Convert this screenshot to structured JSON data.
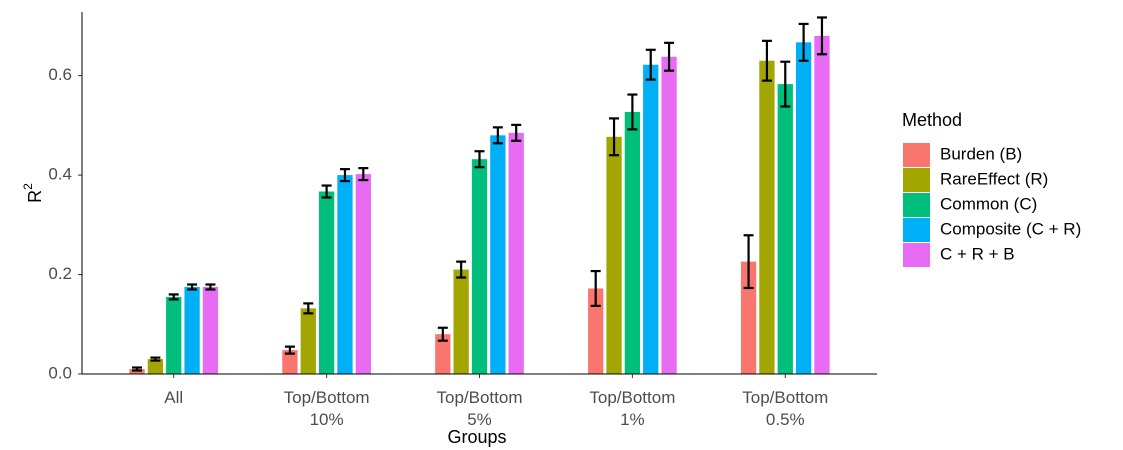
{
  "chart_data": {
    "type": "bar",
    "x_label": "Groups",
    "y_label": "R",
    "y_label_superscript": "2",
    "categories": [
      [
        "All"
      ],
      [
        "Top/Bottom",
        "10%"
      ],
      [
        "Top/Bottom",
        "5%"
      ],
      [
        "Top/Bottom",
        "1%"
      ],
      [
        "Top/Bottom",
        "0.5%"
      ]
    ],
    "series": [
      {
        "name": "Burden (B)",
        "color": "#F8766D",
        "values": [
          0.01,
          0.048,
          0.08,
          0.172,
          0.226
        ],
        "errors": [
          0.003,
          0.007,
          0.013,
          0.035,
          0.053
        ]
      },
      {
        "name": "RareEffect (R)",
        "color": "#A3A500",
        "values": [
          0.03,
          0.132,
          0.21,
          0.477,
          0.63
        ],
        "errors": [
          0.003,
          0.01,
          0.016,
          0.037,
          0.04
        ]
      },
      {
        "name": "Common (C)",
        "color": "#00BF7D",
        "values": [
          0.155,
          0.367,
          0.432,
          0.527,
          0.583
        ],
        "errors": [
          0.005,
          0.012,
          0.016,
          0.035,
          0.045
        ]
      },
      {
        "name": "Composite (C + R)",
        "color": "#00B0F6",
        "values": [
          0.175,
          0.4,
          0.48,
          0.622,
          0.667
        ],
        "errors": [
          0.005,
          0.012,
          0.016,
          0.03,
          0.037
        ]
      },
      {
        "name": "C + R + B",
        "color": "#E76BF3",
        "values": [
          0.175,
          0.402,
          0.485,
          0.638,
          0.68
        ],
        "errors": [
          0.005,
          0.012,
          0.016,
          0.028,
          0.037
        ]
      }
    ],
    "legend_title": "Method",
    "legend_position": "right",
    "ylim": [
      0,
      0.728
    ],
    "yticks": [
      {
        "value": 0,
        "label": "0.0"
      },
      0.2,
      0.4,
      0.6
    ],
    "grid": false
  }
}
